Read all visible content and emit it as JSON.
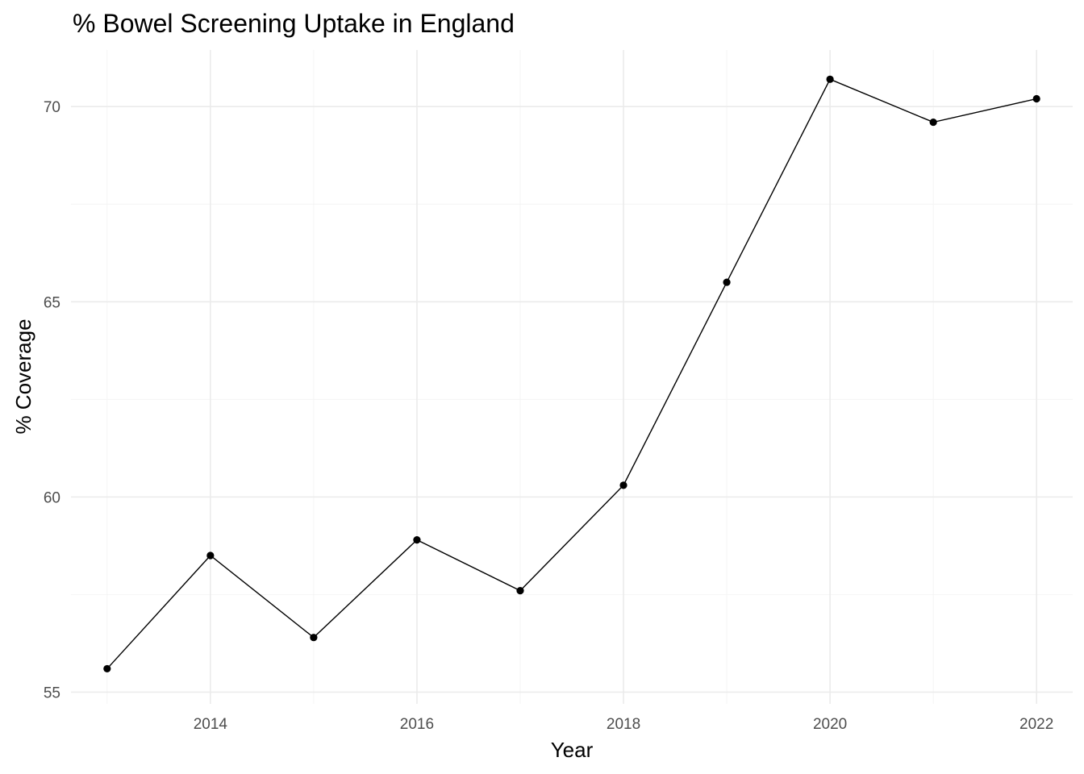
{
  "chart_data": {
    "type": "line",
    "title": "% Bowel Screening Uptake in England",
    "xlabel": "Year",
    "ylabel": "% Coverage",
    "x": [
      2013,
      2014,
      2015,
      2016,
      2017,
      2018,
      2019,
      2020,
      2021,
      2022
    ],
    "series": [
      {
        "values": [
          55.6,
          58.5,
          56.4,
          58.9,
          57.6,
          60.3,
          65.5,
          70.7,
          69.6,
          70.2
        ]
      }
    ],
    "xlim": [
      2012.65,
      2022.35
    ],
    "ylim": [
      54.7,
      71.45
    ],
    "x_ticks": [
      2014,
      2016,
      2018,
      2020,
      2022
    ],
    "x_tick_labels": [
      "2014",
      "2016",
      "2018",
      "2020",
      "2022"
    ],
    "y_ticks": [
      55,
      60,
      65,
      70
    ],
    "y_tick_labels": [
      "55",
      "60",
      "65",
      "70"
    ],
    "grid": true,
    "legend": "none",
    "colors": {
      "line": "#000000",
      "points": "#000000",
      "grid": "#ebebeb",
      "background": "#ffffff"
    }
  }
}
